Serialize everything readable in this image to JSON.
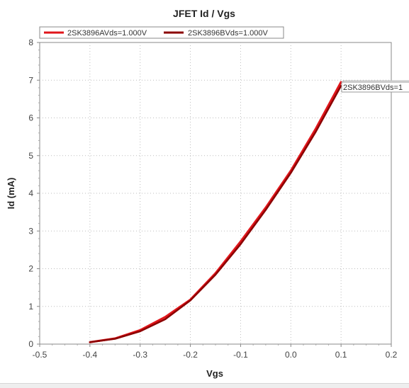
{
  "chart_data": {
    "type": "line",
    "title": "JFET Id / Vgs",
    "xlabel": "Vgs",
    "ylabel": "Id (mA)",
    "xlim": [
      -0.5,
      0.2
    ],
    "ylim": [
      0,
      8
    ],
    "xticks": [
      "-0.5",
      "-0.4",
      "-0.3",
      "-0.2",
      "-0.1",
      "0.0",
      "0.1",
      "0.2"
    ],
    "yticks": [
      "0",
      "1",
      "2",
      "3",
      "4",
      "5",
      "6",
      "7",
      "8"
    ],
    "grid": true,
    "legend_position": "top-left",
    "series": [
      {
        "name": "2SK3896AVds=1.000V",
        "color": "#e0161b",
        "x": [
          -0.4,
          -0.35,
          -0.3,
          -0.25,
          -0.2,
          -0.15,
          -0.1,
          -0.05,
          0.0,
          0.05,
          0.1
        ],
        "y": [
          0.05,
          0.15,
          0.37,
          0.72,
          1.18,
          1.88,
          2.72,
          3.62,
          4.6,
          5.72,
          6.95
        ]
      },
      {
        "name": "2SK3896BVds=1.000V",
        "color": "#8b0000",
        "x": [
          -0.4,
          -0.35,
          -0.3,
          -0.25,
          -0.2,
          -0.15,
          -0.1,
          -0.05,
          0.0,
          0.05,
          0.1
        ],
        "y": [
          0.05,
          0.14,
          0.34,
          0.66,
          1.16,
          1.84,
          2.65,
          3.56,
          4.54,
          5.64,
          6.85
        ]
      }
    ],
    "annotations": [
      {
        "text": "2SK3896BVds=1",
        "series": "2SK3896BVds=1.000V"
      }
    ]
  }
}
